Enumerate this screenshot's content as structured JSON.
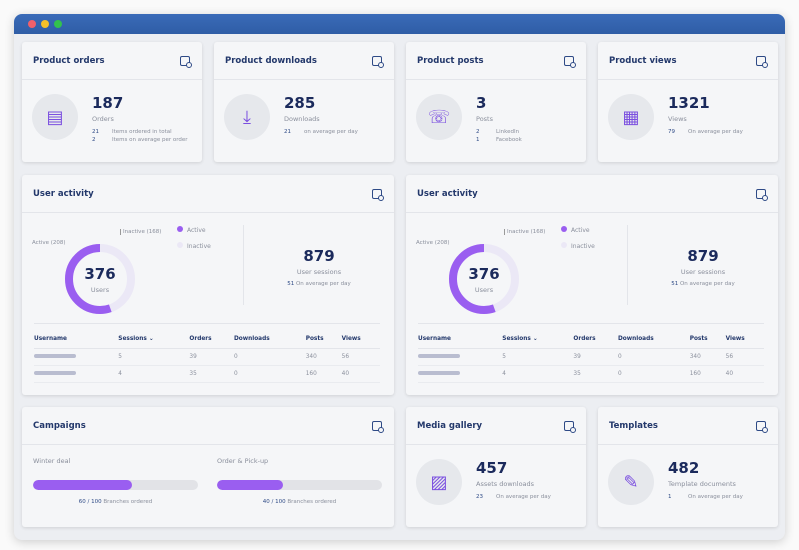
{
  "window": {
    "controls": [
      "close",
      "minimize",
      "maximize"
    ],
    "colors": {
      "titlebar": "#2f5da6",
      "accent": "#9a5ef0"
    }
  },
  "cards": {
    "orders": {
      "title": "Product orders",
      "icon": "credit-card-icon",
      "value": "187",
      "label": "Orders",
      "details": [
        {
          "n": "21",
          "t": "Items ordered in total"
        },
        {
          "n": "2",
          "t": "Items on average per order"
        }
      ]
    },
    "downloads": {
      "title": "Product downloads",
      "icon": "download-icon",
      "value": "285",
      "label": "Downloads",
      "details": [
        {
          "n": "21",
          "t": "on average per day"
        }
      ]
    },
    "posts": {
      "title": "Product posts",
      "icon": "chat-like-icon",
      "value": "3",
      "label": "Posts",
      "details": [
        {
          "n": "2",
          "t": "LinkedIn"
        },
        {
          "n": "1",
          "t": "Facebook"
        }
      ]
    },
    "views": {
      "title": "Product views",
      "icon": "store-view-icon",
      "value": "1321",
      "label": "Views",
      "details": [
        {
          "n": "79",
          "t": "On average per day"
        }
      ]
    },
    "media": {
      "title": "Media gallery",
      "icon": "gallery-icon",
      "value": "457",
      "label": "Assets downloads",
      "details": [
        {
          "n": "23",
          "t": "On average per day"
        }
      ]
    },
    "templates": {
      "title": "Templates",
      "icon": "document-edit-icon",
      "value": "482",
      "label": "Template documents",
      "details": [
        {
          "n": "1",
          "t": "On average per day"
        }
      ]
    }
  },
  "activity": {
    "title": "User activity",
    "total": "376",
    "total_label": "Users",
    "active": 208,
    "inactive": 168,
    "active_callout": "Active (208)",
    "inactive_callout": "Inactive (168)",
    "legend": [
      "Active",
      "Inactive"
    ],
    "sessions": "879",
    "sessions_label": "User sessions",
    "avg_n": "51",
    "avg_t": "On average per day",
    "columns": [
      "Username",
      "Sessions",
      "Orders",
      "Downloads",
      "Posts",
      "Views"
    ],
    "rows": [
      [
        "5",
        "39",
        "0",
        "340",
        "56"
      ],
      [
        "4",
        "35",
        "0",
        "160",
        "40"
      ]
    ]
  },
  "campaigns": {
    "title": "Campaigns",
    "items": [
      {
        "name": "Winter deal",
        "done": 60,
        "total": 100,
        "ratio": "60 / 100",
        "suffix": "Branches ordered"
      },
      {
        "name": "Order & Pick-up",
        "done": 40,
        "total": 100,
        "ratio": "40 / 100",
        "suffix": "Branches ordered"
      }
    ]
  }
}
